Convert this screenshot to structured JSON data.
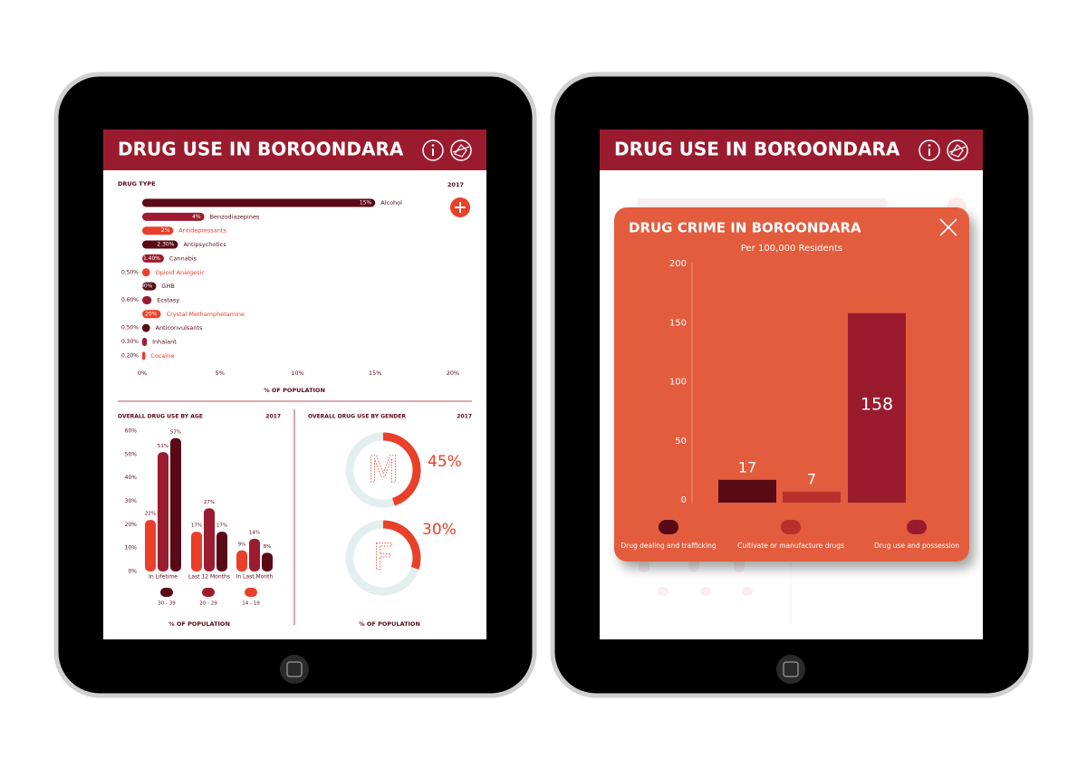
{
  "left_screen": {
    "title": "DRUG USE IN BOROONDARA",
    "drug_use": {
      "type": "bar",
      "title": "DRUG TYPE",
      "year": "2017",
      "categories": [
        "Alcohol",
        "Benzodiazepines",
        "Antidepressants",
        "Antipsychotics",
        "Cannabis",
        "Opioid Analgesic",
        "GHB",
        "Ecstasy",
        "Crystal Methamphetamine",
        "Anticonvulsants",
        "Inhalant",
        "Cocaine"
      ],
      "values": [
        15,
        4,
        2,
        2.3,
        1.4,
        0.5,
        0.9,
        0.6,
        1.2,
        0.5,
        0.3,
        0.2
      ],
      "value_labels": [
        "15%",
        "4%",
        "2%",
        "2.30%",
        "1.40%",
        "0.50%",
        "0.90%",
        "0.60%",
        "1.20%",
        "0.50%",
        "0.30%",
        "0.20%"
      ],
      "colors": [
        "#5a0a16",
        "#9b1b30",
        "#e8402a",
        "#5a0a16",
        "#9b1b30",
        "#e8402a",
        "#5a0a16",
        "#9b1b30",
        "#e8402a",
        "#5a0a16",
        "#9b1b30",
        "#e8402a"
      ],
      "xlim": [
        0,
        20
      ],
      "xticks": [
        {
          "value": 0,
          "label": "0%"
        },
        {
          "value": 5,
          "label": "5%"
        },
        {
          "value": 10,
          "label": "10%"
        },
        {
          "value": 15,
          "label": "15%"
        },
        {
          "value": 20,
          "label": "20%"
        }
      ],
      "xlabel": "% OF POPULATION"
    },
    "age": {
      "type": "bar",
      "title": "OVERALL DRUG USE BY AGE",
      "year": "2017",
      "categories": [
        "In Lifetime",
        "Last 12 Months",
        "In Last Month"
      ],
      "series": [
        {
          "name": "14 - 19",
          "color": "#e8402a",
          "values": [
            22,
            17,
            9
          ],
          "value_labels": [
            "22%",
            "17%",
            "9%"
          ]
        },
        {
          "name": "20 - 29",
          "color": "#9b1b30",
          "values": [
            51,
            27,
            14
          ],
          "value_labels": [
            "51%",
            "27%",
            "14%"
          ]
        },
        {
          "name": "30 - 39",
          "color": "#5a0a16",
          "values": [
            57,
            17,
            8
          ],
          "value_labels": [
            "57%",
            "17%",
            "8%"
          ]
        }
      ],
      "ylim": [
        0,
        60
      ],
      "yticks": [
        {
          "value": 0,
          "label": "0%"
        },
        {
          "value": 10,
          "label": "10%"
        },
        {
          "value": 20,
          "label": "20%"
        },
        {
          "value": 30,
          "label": "30%"
        },
        {
          "value": 40,
          "label": "40%"
        },
        {
          "value": 50,
          "label": "50%"
        },
        {
          "value": 60,
          "label": "60%"
        }
      ],
      "xlabel": "% OF POPULATION"
    },
    "gender": {
      "type": "donut",
      "title": "OVERALL DRUG USE BY GENDER",
      "year": "2017",
      "categories": [
        "M",
        "F"
      ],
      "values": [
        45,
        30
      ],
      "value_labels": [
        "45%",
        "30%"
      ],
      "color": "#e8402a",
      "track_color": "#e4eeee",
      "xlabel": "% OF POPULATION"
    }
  },
  "right_screen": {
    "title": "DRUG USE IN BOROONDARA",
    "popup": {
      "type": "bar",
      "title": "DRUG CRIME IN BOROONDARA",
      "subtitle": "Per 100,000 Residents",
      "categories": [
        "Drug dealing and trafficking",
        "Cultivate or manufacture drugs",
        "Drug use and possession"
      ],
      "values": [
        17,
        7,
        158
      ],
      "colors": [
        "#5a0a14",
        "#b8302c",
        "#9b1b2e"
      ],
      "ylim": [
        0,
        200
      ],
      "yticks": [
        0,
        50,
        100,
        150,
        200
      ]
    }
  }
}
